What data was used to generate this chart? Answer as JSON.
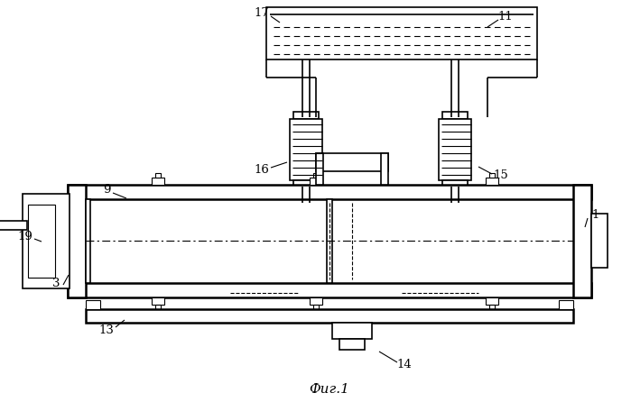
{
  "bg_color": "#ffffff",
  "line_color": "#000000",
  "figure_caption": "Фиг.1",
  "lw_thin": 0.8,
  "lw_med": 1.2,
  "lw_thick": 1.8
}
